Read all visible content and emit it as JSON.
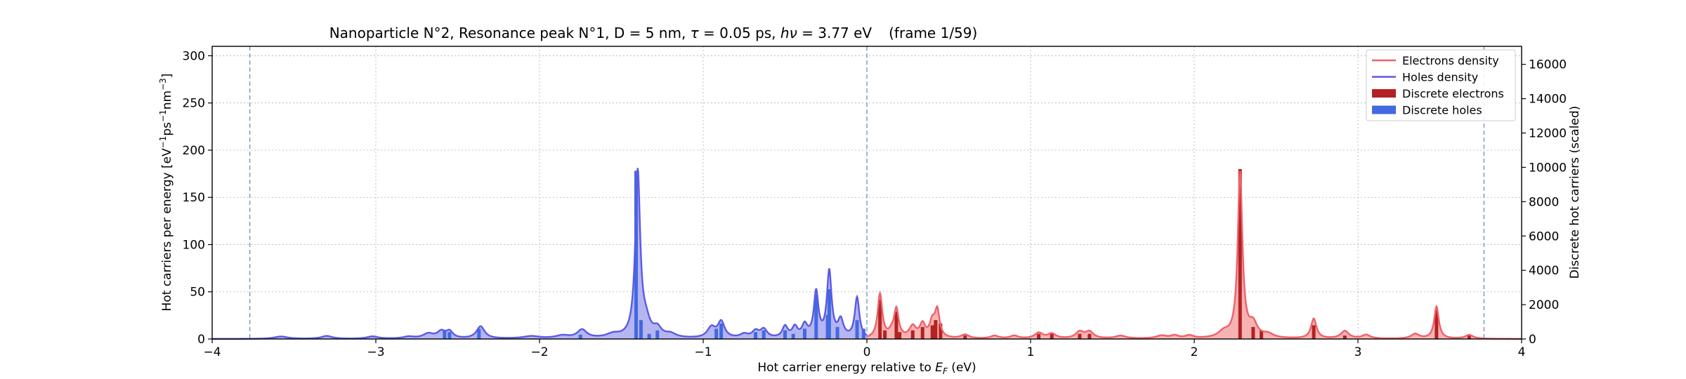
{
  "chart_data": {
    "type": "area",
    "title_parts": {
      "main": "Nanoparticle N°2, Resonance peak N°1, D = 5 nm, ",
      "tau_symbol": "τ",
      "tau_value": " = 0.05 ps, ",
      "h": "h",
      "nu": "ν",
      "energy": " = 3.77 eV",
      "frame": "(frame 1/59)"
    },
    "xlabel_prefix": "Hot carrier energy relative to ",
    "xlabel_E": "E",
    "xlabel_F": "F",
    "xlabel_suffix": " (eV)",
    "ylabel_left_parts": {
      "base": "Hot carriers per energy [eV",
      "sup1": "−1",
      "mid": "ps",
      "sup2": "−1",
      "mid2": "nm",
      "sup3": "−3",
      "end": "]"
    },
    "ylabel_right": "Discrete hot carriers (scaled)",
    "xlim": [
      -4,
      4
    ],
    "ylim_left": [
      0,
      310
    ],
    "ylim_right": [
      0,
      17050
    ],
    "xticks": [
      -4,
      -3,
      -2,
      -1,
      0,
      1,
      2,
      3,
      4
    ],
    "xtick_labels": [
      "−4",
      "−3",
      "−2",
      "−1",
      "0",
      "1",
      "2",
      "3",
      "4"
    ],
    "yticks_left": [
      0,
      50,
      100,
      150,
      200,
      250,
      300
    ],
    "ytick_labels_left": [
      "0",
      "50",
      "100",
      "150",
      "200",
      "250",
      "300"
    ],
    "yticks_right": [
      0,
      2000,
      4000,
      6000,
      8000,
      10000,
      12000,
      14000,
      16000
    ],
    "ytick_labels_right": [
      "0",
      "2000",
      "4000",
      "6000",
      "8000",
      "10000",
      "12000",
      "14000",
      "16000"
    ],
    "grid": true,
    "vlines": [
      -3.77,
      0,
      3.77
    ],
    "legend_position": "top-right",
    "legend": [
      {
        "label": "Electrons density",
        "kind": "line",
        "color": "#f0606a"
      },
      {
        "label": "Holes density",
        "kind": "line",
        "color": "#5a5ae6"
      },
      {
        "label": "Discrete electrons",
        "kind": "patch",
        "color": "#b22222"
      },
      {
        "label": "Discrete holes",
        "kind": "patch",
        "color": "#4169e1"
      }
    ],
    "colors": {
      "electron_line": "#f0606a",
      "electron_fill": "#f4a6a6",
      "hole_line": "#5a5ae6",
      "hole_fill": "#a8a8f0",
      "electron_bar": "#b22222",
      "hole_bar": "#4169e1",
      "vline": "#6a8fc0"
    },
    "holes_density_peaks": [
      {
        "x": -3.58,
        "h": 2.5,
        "w": 0.05
      },
      {
        "x": -3.3,
        "h": 3,
        "w": 0.04
      },
      {
        "x": -3.02,
        "h": 2.5,
        "w": 0.04
      },
      {
        "x": -2.8,
        "h": 2,
        "w": 0.04
      },
      {
        "x": -2.68,
        "h": 5,
        "w": 0.04
      },
      {
        "x": -2.6,
        "h": 7,
        "w": 0.03
      },
      {
        "x": -2.55,
        "h": 7,
        "w": 0.025
      },
      {
        "x": -2.36,
        "h": 13,
        "w": 0.03
      },
      {
        "x": -2.05,
        "h": 2.5,
        "w": 0.06
      },
      {
        "x": -1.86,
        "h": 3,
        "w": 0.05
      },
      {
        "x": -1.74,
        "h": 9,
        "w": 0.035
      },
      {
        "x": -1.55,
        "h": 4,
        "w": 0.05
      },
      {
        "x": -1.4,
        "h": 176,
        "w": 0.018
      },
      {
        "x": -1.35,
        "h": 14,
        "w": 0.03
      },
      {
        "x": -1.28,
        "h": 9,
        "w": 0.03
      },
      {
        "x": -1.2,
        "h": 4,
        "w": 0.04
      },
      {
        "x": -0.95,
        "h": 11,
        "w": 0.03
      },
      {
        "x": -0.89,
        "h": 17,
        "w": 0.025
      },
      {
        "x": -0.75,
        "h": 4,
        "w": 0.03
      },
      {
        "x": -0.68,
        "h": 7,
        "w": 0.025
      },
      {
        "x": -0.63,
        "h": 9,
        "w": 0.025
      },
      {
        "x": -0.5,
        "h": 12,
        "w": 0.02
      },
      {
        "x": -0.44,
        "h": 11,
        "w": 0.02
      },
      {
        "x": -0.38,
        "h": 13,
        "w": 0.02
      },
      {
        "x": -0.31,
        "h": 48,
        "w": 0.017
      },
      {
        "x": -0.23,
        "h": 70,
        "w": 0.017
      },
      {
        "x": -0.16,
        "h": 18,
        "w": 0.02
      },
      {
        "x": -0.06,
        "h": 43,
        "w": 0.017
      }
    ],
    "electrons_density_peaks": [
      {
        "x": 0.08,
        "h": 47,
        "w": 0.017
      },
      {
        "x": 0.15,
        "h": 5,
        "w": 0.02
      },
      {
        "x": 0.18,
        "h": 30,
        "w": 0.017
      },
      {
        "x": 0.28,
        "h": 12,
        "w": 0.025
      },
      {
        "x": 0.34,
        "h": 14,
        "w": 0.02
      },
      {
        "x": 0.4,
        "h": 16,
        "w": 0.02
      },
      {
        "x": 0.43,
        "h": 28,
        "w": 0.017
      },
      {
        "x": 0.6,
        "h": 4,
        "w": 0.03
      },
      {
        "x": 0.78,
        "h": 3,
        "w": 0.03
      },
      {
        "x": 0.9,
        "h": 3,
        "w": 0.03
      },
      {
        "x": 1.05,
        "h": 6,
        "w": 0.03
      },
      {
        "x": 1.13,
        "h": 5,
        "w": 0.03
      },
      {
        "x": 1.3,
        "h": 7,
        "w": 0.03
      },
      {
        "x": 1.36,
        "h": 7,
        "w": 0.03
      },
      {
        "x": 1.55,
        "h": 3,
        "w": 0.04
      },
      {
        "x": 1.8,
        "h": 3,
        "w": 0.04
      },
      {
        "x": 1.88,
        "h": 3,
        "w": 0.03
      },
      {
        "x": 1.97,
        "h": 3,
        "w": 0.03
      },
      {
        "x": 2.18,
        "h": 6,
        "w": 0.04
      },
      {
        "x": 2.28,
        "h": 175,
        "w": 0.017
      },
      {
        "x": 2.36,
        "h": 14,
        "w": 0.03
      },
      {
        "x": 2.45,
        "h": 4,
        "w": 0.04
      },
      {
        "x": 2.73,
        "h": 21,
        "w": 0.02
      },
      {
        "x": 2.92,
        "h": 8,
        "w": 0.03
      },
      {
        "x": 3.05,
        "h": 4,
        "w": 0.03
      },
      {
        "x": 3.35,
        "h": 5,
        "w": 0.03
      },
      {
        "x": 3.48,
        "h": 34,
        "w": 0.017
      },
      {
        "x": 3.68,
        "h": 4,
        "w": 0.03
      }
    ],
    "discrete_holes": [
      {
        "x": -2.58,
        "v": 500
      },
      {
        "x": -2.55,
        "v": 400
      },
      {
        "x": -2.37,
        "v": 600
      },
      {
        "x": -1.75,
        "v": 250
      },
      {
        "x": -1.41,
        "v": 9800
      },
      {
        "x": -1.38,
        "v": 1100
      },
      {
        "x": -1.33,
        "v": 300
      },
      {
        "x": -1.28,
        "v": 500
      },
      {
        "x": -0.92,
        "v": 600
      },
      {
        "x": -0.89,
        "v": 900
      },
      {
        "x": -0.68,
        "v": 400
      },
      {
        "x": -0.63,
        "v": 500
      },
      {
        "x": -0.5,
        "v": 500
      },
      {
        "x": -0.45,
        "v": 300
      },
      {
        "x": -0.38,
        "v": 600
      },
      {
        "x": -0.31,
        "v": 2600
      },
      {
        "x": -0.24,
        "v": 1400
      },
      {
        "x": -0.23,
        "v": 2900
      },
      {
        "x": -0.18,
        "v": 700
      },
      {
        "x": -0.06,
        "v": 1100
      },
      {
        "x": -0.02,
        "v": 600
      }
    ],
    "discrete_electrons": [
      {
        "x": 0.08,
        "v": 2300
      },
      {
        "x": 0.11,
        "v": 500
      },
      {
        "x": 0.18,
        "v": 1600
      },
      {
        "x": 0.2,
        "v": 400
      },
      {
        "x": 0.28,
        "v": 500
      },
      {
        "x": 0.34,
        "v": 700
      },
      {
        "x": 0.4,
        "v": 800
      },
      {
        "x": 0.42,
        "v": 1100
      },
      {
        "x": 0.45,
        "v": 900
      },
      {
        "x": 0.6,
        "v": 200
      },
      {
        "x": 1.05,
        "v": 300
      },
      {
        "x": 1.13,
        "v": 300
      },
      {
        "x": 1.3,
        "v": 300
      },
      {
        "x": 1.36,
        "v": 300
      },
      {
        "x": 2.28,
        "v": 9900
      },
      {
        "x": 2.36,
        "v": 700
      },
      {
        "x": 2.41,
        "v": 500
      },
      {
        "x": 2.73,
        "v": 800
      },
      {
        "x": 2.92,
        "v": 200
      },
      {
        "x": 3.48,
        "v": 1700
      },
      {
        "x": 3.68,
        "v": 200
      }
    ]
  }
}
